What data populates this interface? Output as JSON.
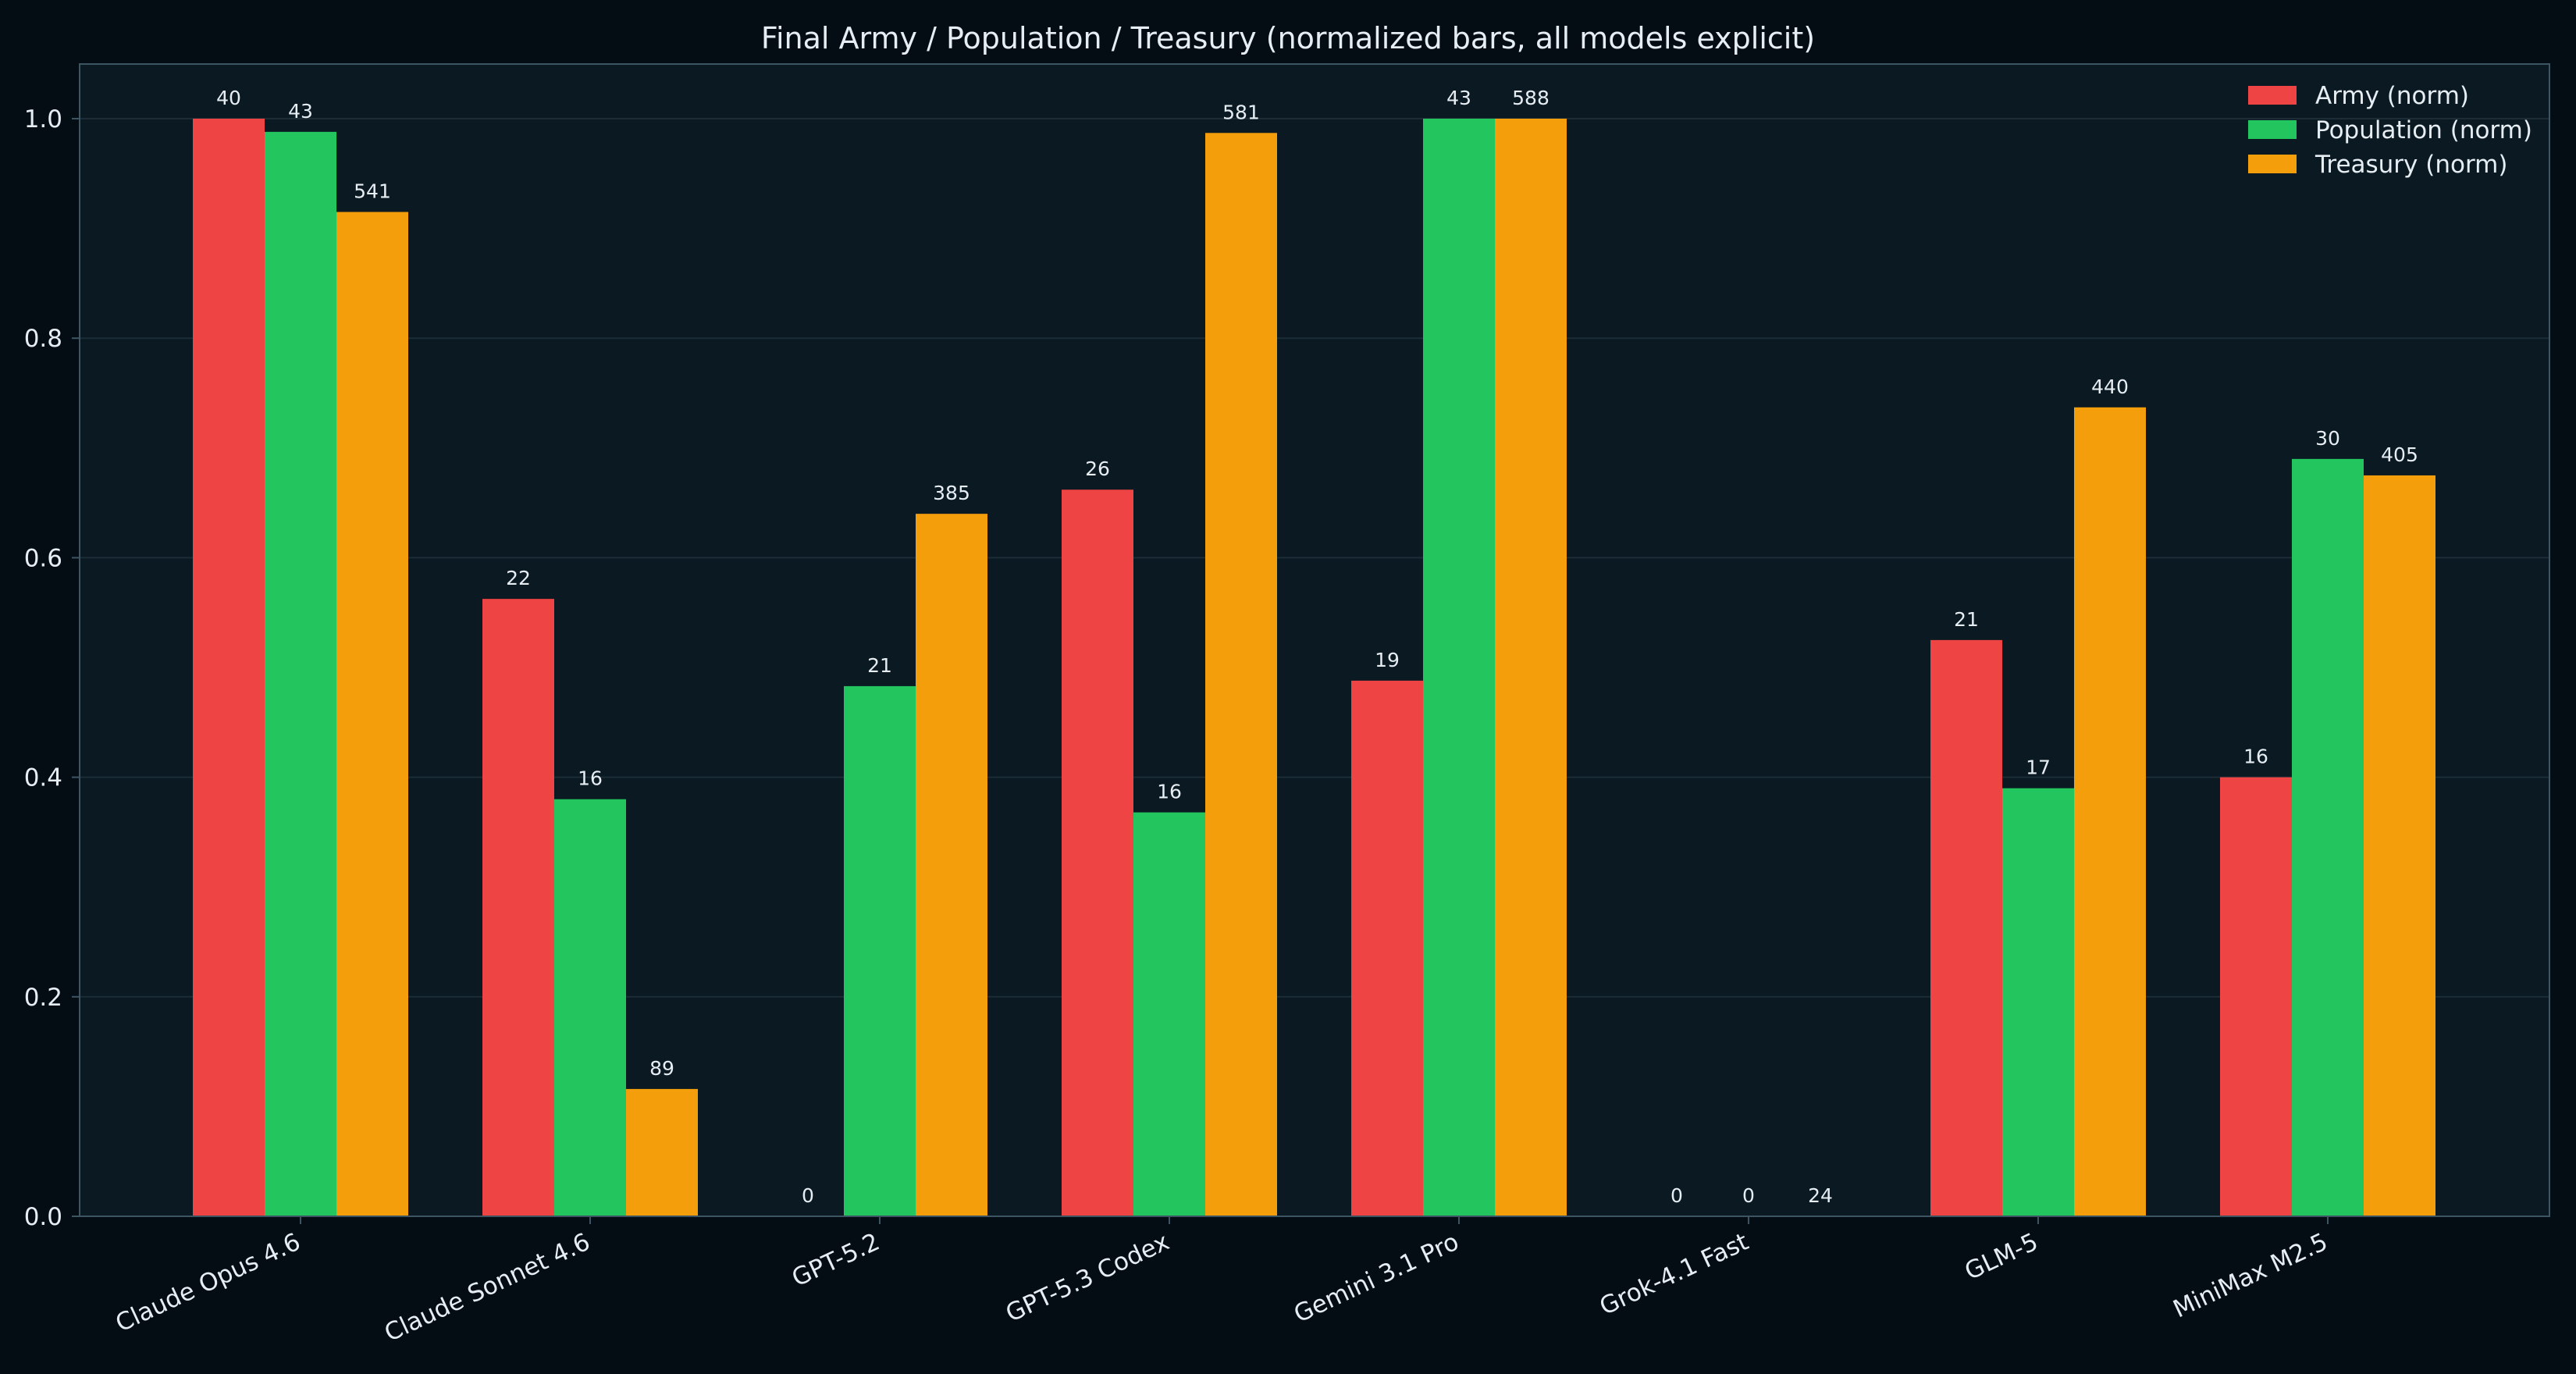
{
  "chart_data": {
    "type": "bar",
    "title": "Final Army / Population / Treasury (normalized bars, all models explicit)",
    "xlabel": "",
    "ylabel": "",
    "ylim": [
      0,
      1.05
    ],
    "yticks": [
      "0.0",
      "0.2",
      "0.4",
      "0.6",
      "0.8",
      "1.0"
    ],
    "grid": true,
    "legend_position": "top-right",
    "categories": [
      "Claude Opus 4.6",
      "Claude Sonnet 4.6",
      "GPT-5.2",
      "GPT-5.3 Codex",
      "Gemini 3.1 Pro",
      "Grok-4.1 Fast",
      "GLM-5",
      "MiniMax M2.5"
    ],
    "series": [
      {
        "name": "Army (norm)",
        "color": "#ef4444",
        "values": [
          1.0,
          0.5625,
          0.0,
          0.662,
          0.488,
          0.0,
          0.525,
          0.4
        ],
        "labels": [
          "40",
          "22",
          "0",
          "26",
          "19",
          "0",
          "21",
          "16"
        ]
      },
      {
        "name": "Population (norm)",
        "color": "#22c55e",
        "values": [
          0.988,
          0.38,
          0.483,
          0.368,
          1.0,
          0.0,
          0.39,
          0.69
        ],
        "labels": [
          "43",
          "16",
          "21",
          "16",
          "43",
          "0",
          "17",
          "30"
        ]
      },
      {
        "name": "Treasury (norm)",
        "color": "#f59e0b",
        "values": [
          0.915,
          0.116,
          0.64,
          0.987,
          1.0,
          0.0,
          0.737,
          0.675
        ],
        "labels": [
          "541",
          "89",
          "385",
          "581",
          "588",
          "24",
          "440",
          "405"
        ]
      }
    ],
    "colors": {
      "figure_background": "#050d14",
      "plot_background": "#0a1922",
      "grid": "#1c2d37",
      "spine": "#3d5563",
      "text": "#e6edf3"
    }
  }
}
